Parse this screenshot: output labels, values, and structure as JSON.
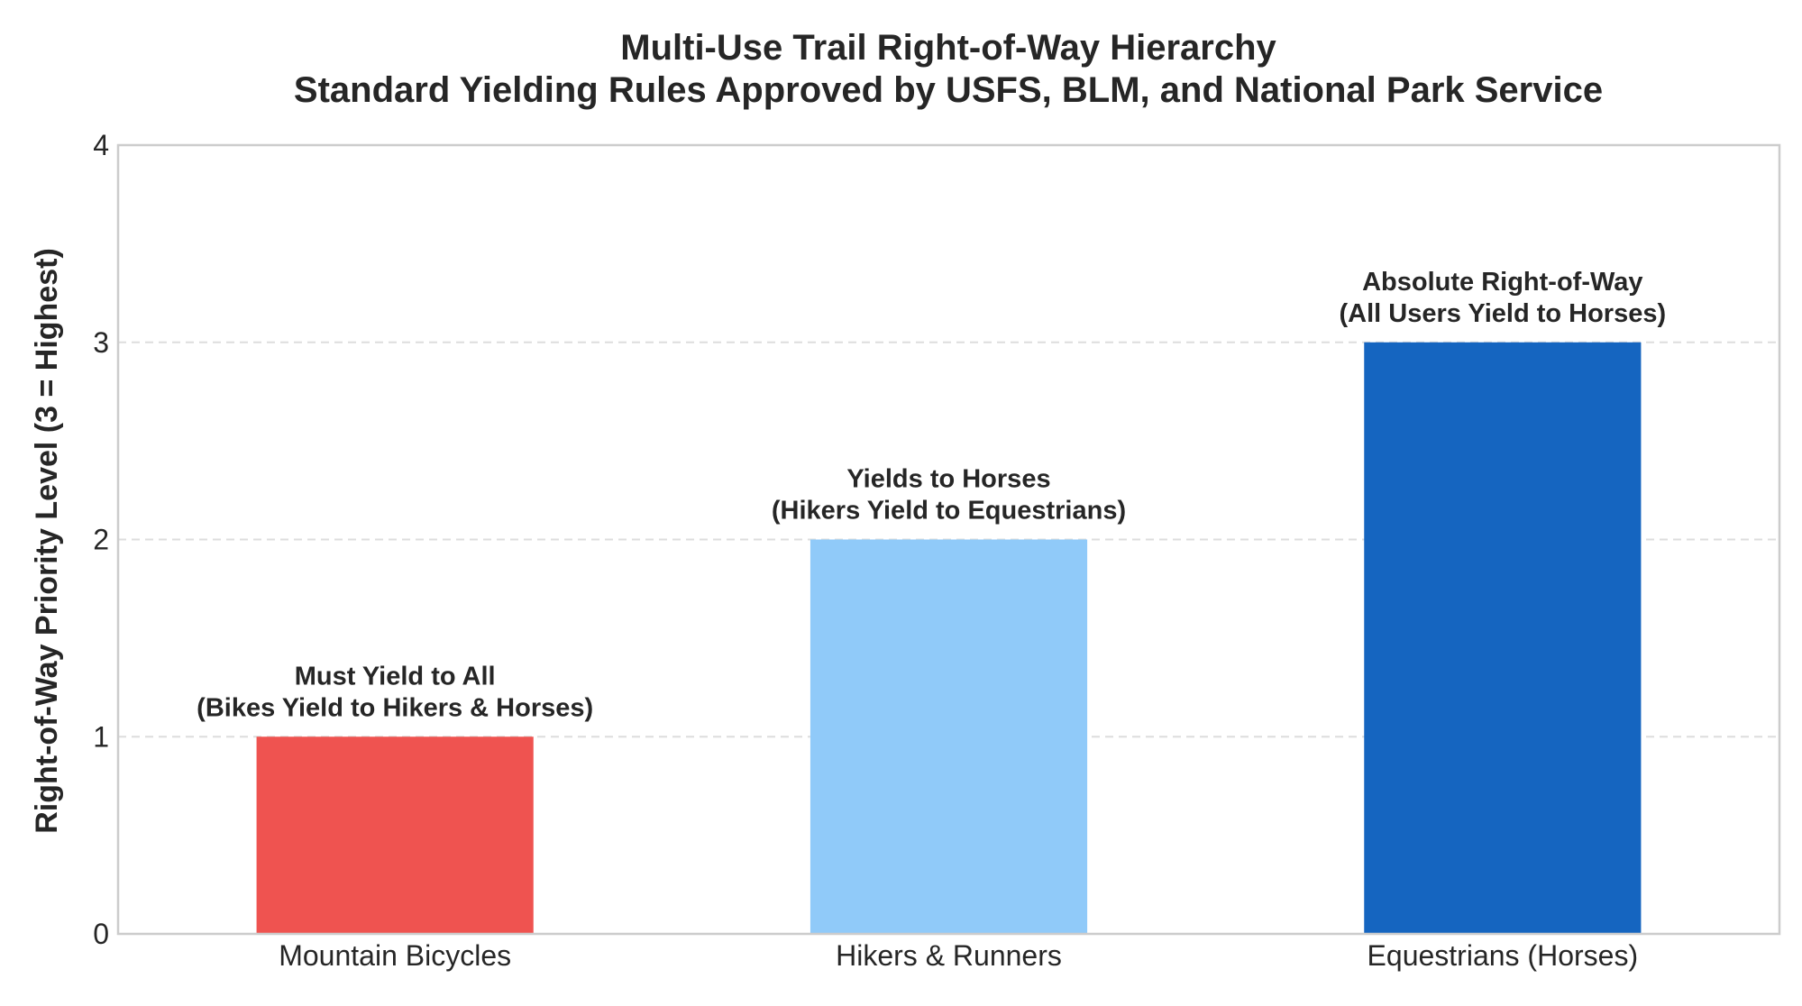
{
  "chart_data": {
    "type": "bar",
    "title": "Multi-Use Trail Right-of-Way Hierarchy",
    "subtitle": "Standard Yielding Rules Approved by USFS, BLM, and National Park Service",
    "xlabel": "",
    "ylabel": "Right-of-Way Priority Level (3 = Highest)",
    "categories": [
      "Mountain Bicycles",
      "Hikers & Runners",
      "Equestrians (Horses)"
    ],
    "values": [
      1,
      2,
      3
    ],
    "colors": [
      "#ef5350",
      "#90caf9",
      "#1565c0"
    ],
    "annotations": [
      [
        "Must Yield to All",
        "(Bikes Yield to Hikers & Horses)"
      ],
      [
        "Yields to Horses",
        "(Hikers Yield to Equestrians)"
      ],
      [
        "Absolute Right-of-Way",
        "(All Users Yield to Horses)"
      ]
    ],
    "ylim": [
      0,
      4
    ],
    "yticks": [
      "0",
      "1",
      "2",
      "3",
      "4"
    ],
    "grid": true,
    "grid_color": "#dddddd",
    "frame_color": "#cccccc"
  }
}
